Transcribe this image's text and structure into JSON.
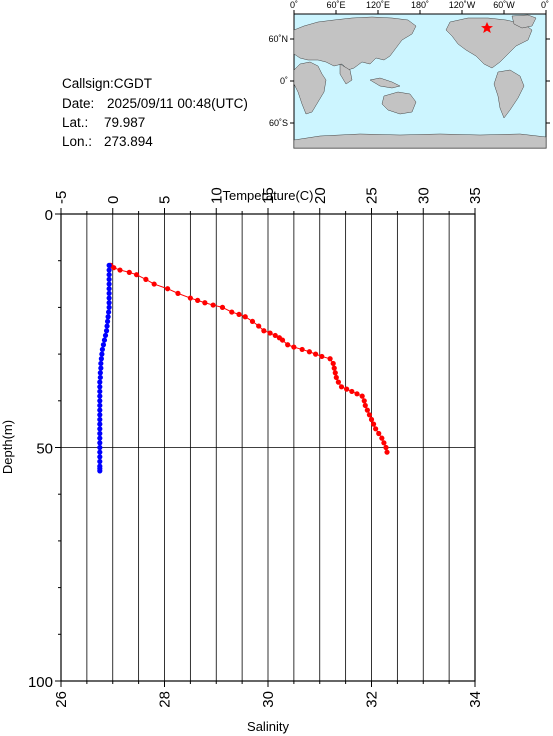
{
  "station": {
    "callsign": "Callsign:CGDT",
    "date_label": "Date:",
    "date_value": "2025/09/11 00:48(UTC)",
    "lat_label": "Lat.:",
    "lat_value": "79.987",
    "lon_label": "Lon.:",
    "lon_value": "273.894"
  },
  "map": {
    "top_labels": [
      "0˚",
      "60˚E",
      "120˚E",
      "180˚",
      "120˚W",
      "60˚W",
      "0˚"
    ],
    "left_labels": [
      "60˚N",
      "0˚",
      "60˚S"
    ],
    "ocean_color": "#ccf5ff",
    "land_color": "#c3c3c3",
    "marker_color": "#ff0000"
  },
  "chart_data": {
    "type": "scatter",
    "top_axis": {
      "label": "Temperature(C)",
      "range": [
        -5,
        35
      ],
      "ticks": [
        "-5",
        "0",
        "5",
        "10",
        "15",
        "20",
        "25",
        "30",
        "35"
      ]
    },
    "bottom_axis": {
      "label": "Salinity",
      "range": [
        26,
        34
      ],
      "ticks": [
        "26",
        "28",
        "30",
        "32",
        "34"
      ]
    },
    "y_axis": {
      "label": "Depth(m)",
      "range": [
        0,
        100
      ],
      "inverted": true,
      "ticks": [
        "0",
        "50",
        "100"
      ]
    },
    "grid": true,
    "series": [
      {
        "quantity": "Temperature",
        "axis": "top",
        "color": "#ff0000",
        "x": [
          -0.2,
          0.1,
          0.7,
          1.6,
          2.3,
          3.2,
          4.0,
          5.3,
          6.3,
          7.5,
          8.2,
          8.9,
          9.7,
          10.6,
          11.5,
          12.2,
          12.8,
          13.5,
          14.1,
          14.6,
          15.2,
          15.7,
          16.1,
          16.4,
          16.9,
          17.5,
          18.3,
          19.0,
          19.6,
          20.2,
          21.0,
          21.3,
          21.4,
          21.5,
          21.6,
          21.8,
          22.1,
          22.6,
          23.1,
          23.6,
          24.1,
          24.3,
          24.4,
          24.6,
          24.8,
          25.0,
          25.2,
          25.4,
          25.7,
          26.0,
          26.2,
          26.4,
          26.5
        ],
        "y": [
          11.0,
          11.5,
          12.0,
          12.5,
          13.0,
          14.0,
          15.0,
          16.0,
          17.0,
          18.0,
          18.5,
          19.0,
          19.5,
          20.0,
          21.0,
          21.5,
          22.0,
          23.0,
          24.0,
          25.0,
          25.5,
          26.0,
          26.5,
          27.0,
          28.0,
          28.5,
          29.0,
          29.5,
          30.0,
          30.5,
          31.0,
          32.0,
          33.0,
          34.0,
          35.0,
          36.0,
          37.0,
          37.5,
          38.0,
          38.5,
          39.0,
          40.0,
          41.0,
          42.0,
          43.0,
          44.0,
          45.0,
          46.0,
          47.0,
          48.0,
          49.0,
          50.0,
          51.0
        ]
      },
      {
        "quantity": "Salinity",
        "axis": "bottom",
        "color": "#0000ff",
        "x": [
          26.93,
          26.93,
          26.93,
          26.93,
          26.93,
          26.93,
          26.93,
          26.93,
          26.93,
          26.93,
          26.92,
          26.91,
          26.9,
          26.89,
          26.88,
          26.86,
          26.84,
          26.82,
          26.8,
          26.79,
          26.78,
          26.77,
          26.77,
          26.76,
          26.76,
          26.75,
          26.75,
          26.75,
          26.75,
          26.75,
          26.75,
          26.75,
          26.75,
          26.75,
          26.75,
          26.75,
          26.75,
          26.75,
          26.75,
          26.75,
          26.75,
          26.75,
          26.75,
          26.75,
          26.75,
          26.75
        ],
        "y": [
          11.0,
          12.0,
          13.0,
          14.0,
          15.0,
          16.0,
          17.0,
          18.0,
          19.0,
          20.0,
          21.0,
          22.0,
          23.0,
          24.0,
          25.0,
          26.0,
          27.0,
          28.0,
          29.0,
          30.0,
          31.0,
          32.0,
          33.0,
          34.0,
          35.0,
          36.0,
          37.0,
          38.0,
          39.0,
          40.0,
          41.0,
          42.0,
          43.0,
          44.0,
          45.0,
          46.0,
          47.0,
          48.0,
          49.0,
          50.0,
          51.0,
          52.0,
          53.0,
          54.0,
          54.5,
          55.0
        ]
      }
    ]
  }
}
